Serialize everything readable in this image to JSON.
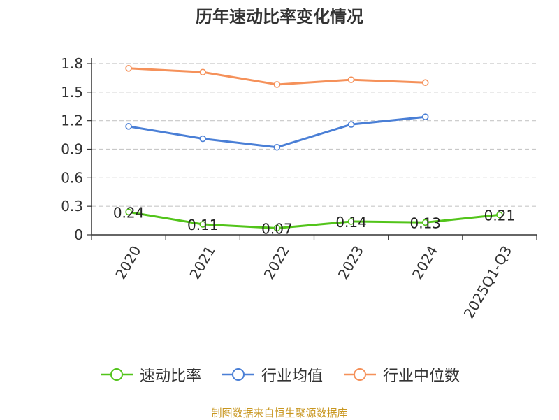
{
  "chart_data": {
    "type": "line",
    "title": "历年速动比率变化情况",
    "categories": [
      "2020",
      "2021",
      "2022",
      "2023",
      "2024",
      "2025Q1-Q3"
    ],
    "ylim": [
      0,
      1.8
    ],
    "yticks": [
      "0",
      "0.3",
      "0.6",
      "0.9",
      "1.2",
      "1.5",
      "1.8"
    ],
    "grid": true,
    "legend_position": "bottom",
    "series": [
      {
        "name": "速动比率",
        "color": "#52c41a",
        "values": [
          0.24,
          0.11,
          0.07,
          0.14,
          0.13,
          0.21
        ],
        "labels": [
          "0.24",
          "0.11",
          "0.07",
          "0.14",
          "0.13",
          "0.21"
        ]
      },
      {
        "name": "行业均值",
        "color": "#4a7fd6",
        "values": [
          1.14,
          1.01,
          0.92,
          1.16,
          1.24,
          null
        ]
      },
      {
        "name": "行业中位数",
        "color": "#f5915a",
        "values": [
          1.75,
          1.71,
          1.58,
          1.63,
          1.6,
          null
        ]
      }
    ]
  },
  "footer": {
    "source": "制图数据来自恒生聚源数据库"
  }
}
